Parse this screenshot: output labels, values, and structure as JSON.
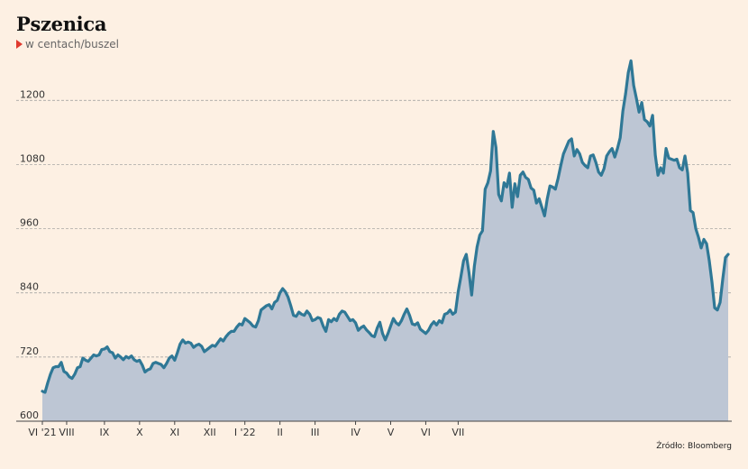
{
  "chart_data": {
    "type": "area",
    "title": "Pszenica",
    "subtitle": "w centach/buszel",
    "source": "Źródło: Bloomberg",
    "ylim": [
      600,
      1300
    ],
    "yticks": [
      600,
      720,
      840,
      960,
      1080,
      1200
    ],
    "grid": true,
    "colors": {
      "line": "#2f7896",
      "fill": "#bdc6d4",
      "grid": "#999999",
      "marker": "#e03a2f"
    },
    "xticks": [
      {
        "label": "VI '21",
        "index": 0
      },
      {
        "label": "VIII",
        "index": 9
      },
      {
        "label": "IX",
        "index": 23
      },
      {
        "label": "X",
        "index": 36
      },
      {
        "label": "XI",
        "index": 49
      },
      {
        "label": "XII",
        "index": 62
      },
      {
        "label": "I '22",
        "index": 75
      },
      {
        "label": "II",
        "index": 88
      },
      {
        "label": "III",
        "index": 101
      },
      {
        "label": "IV",
        "index": 116
      },
      {
        "label": "V",
        "index": 129
      },
      {
        "label": "VI",
        "index": 142
      },
      {
        "label": "VII",
        "index": 154
      }
    ],
    "series": [
      {
        "values": [
          656,
          654,
          672,
          688,
          700,
          702,
          702,
          710,
          693,
          690,
          683,
          680,
          688,
          700,
          702,
          718,
          714,
          712,
          718,
          724,
          722,
          724,
          734,
          735,
          739,
          730,
          728,
          718,
          724,
          720,
          715,
          721,
          718,
          722,
          715,
          712,
          714,
          705,
          692,
          696,
          698,
          708,
          710,
          708,
          706,
          700,
          708,
          718,
          722,
          714,
          728,
          744,
          752,
          746,
          748,
          746,
          738,
          742,
          744,
          740,
          730,
          734,
          738,
          742,
          740,
          747,
          754,
          750,
          758,
          764,
          768,
          768,
          776,
          782,
          780,
          792,
          788,
          784,
          778,
          776,
          788,
          808,
          812,
          816,
          818,
          810,
          822,
          826,
          840,
          848,
          842,
          832,
          816,
          798,
          796,
          804,
          800,
          798,
          806,
          800,
          788,
          790,
          794,
          792,
          778,
          768,
          790,
          786,
          792,
          788,
          800,
          806,
          804,
          796,
          788,
          790,
          784,
          770,
          775,
          778,
          771,
          766,
          760,
          758,
          774,
          785,
          764,
          752,
          764,
          778,
          792,
          784,
          780,
          788,
          800,
          810,
          798,
          782,
          780,
          784,
          772,
          768,
          764,
          770,
          780,
          786,
          780,
          788,
          784,
          800,
          802,
          808,
          800,
          804,
          842,
          870,
          900,
          912,
          878,
          836,
          890,
          926,
          948,
          956,
          1034,
          1046,
          1068,
          1142,
          1112,
          1024,
          1012,
          1046,
          1038,
          1064,
          1000,
          1044,
          1020,
          1060,
          1066,
          1056,
          1052,
          1036,
          1032,
          1008,
          1016,
          1000,
          984,
          1016,
          1040,
          1038,
          1034,
          1054,
          1078,
          1100,
          1112,
          1124,
          1128,
          1096,
          1108,
          1100,
          1084,
          1078,
          1074,
          1096,
          1098,
          1084,
          1066,
          1060,
          1072,
          1096,
          1104,
          1110,
          1094,
          1110,
          1130,
          1180,
          1212,
          1252,
          1274,
          1228,
          1204,
          1178,
          1196,
          1164,
          1160,
          1152,
          1172,
          1098,
          1060,
          1074,
          1064,
          1110,
          1092,
          1090,
          1088,
          1090,
          1074,
          1070,
          1096,
          1064,
          994,
          990,
          960,
          944,
          924,
          940,
          932,
          900,
          860,
          812,
          808,
          822,
          866,
          906,
          912
        ]
      }
    ]
  }
}
